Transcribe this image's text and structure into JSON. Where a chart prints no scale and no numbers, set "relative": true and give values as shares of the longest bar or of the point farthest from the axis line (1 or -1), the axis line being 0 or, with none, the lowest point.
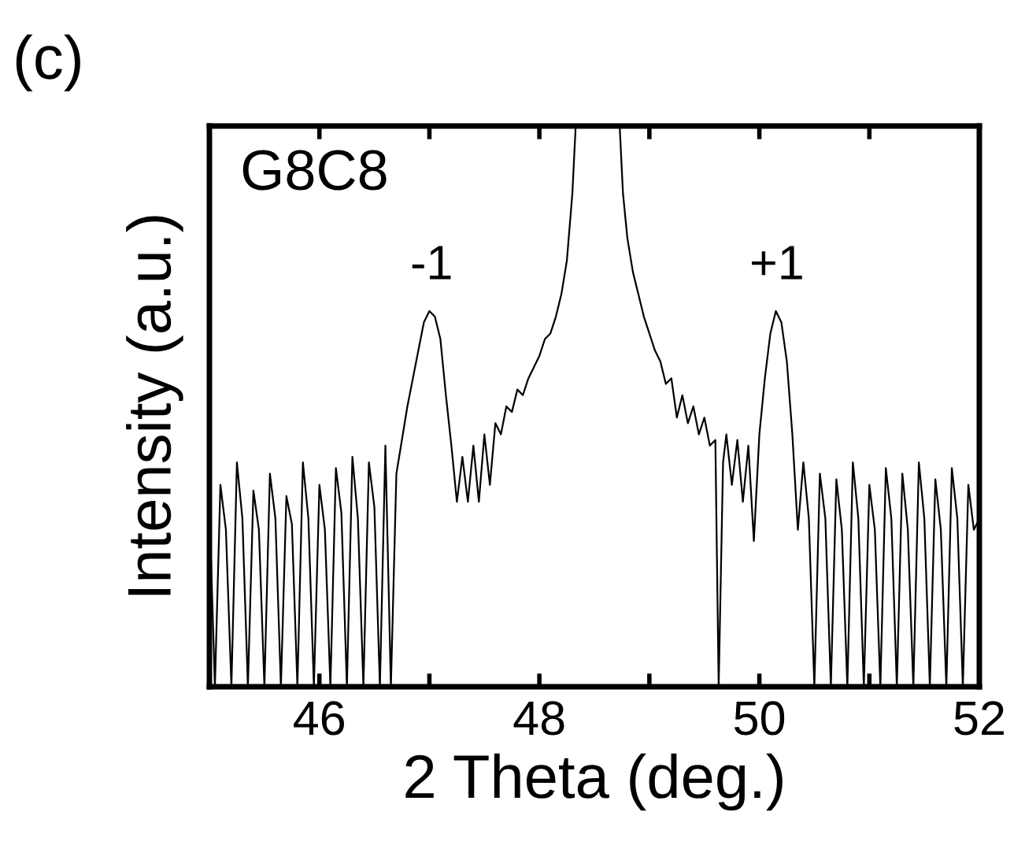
{
  "chart_data": {
    "type": "line",
    "relative": true,
    "xlabel": "2 Theta (deg.)",
    "ylabel": "Intensity (a.u.)",
    "xlim": [
      45,
      52
    ],
    "xticks": [
      46,
      {
        "value": 47,
        "label": null
      },
      48,
      {
        "value": 49,
        "label": null
      },
      50,
      {
        "value": 51,
        "label": null
      },
      52
    ],
    "annotations": [
      "(c)",
      "G8C8",
      {
        "text": "-1",
        "x": 47.02,
        "y": 0.67
      },
      {
        "text": "+1",
        "x": 50.16,
        "y": 0.67
      }
    ],
    "series": [
      {
        "color": "#000000",
        "x": [
          45.0,
          45.05,
          45.1,
          45.15,
          45.2,
          45.25,
          45.3,
          45.35,
          45.4,
          45.45,
          45.5,
          45.55,
          45.6,
          45.65,
          45.7,
          45.75,
          45.8,
          45.85,
          45.9,
          45.95,
          46.0,
          46.05,
          46.1,
          46.15,
          46.2,
          46.25,
          46.3,
          46.35,
          46.4,
          46.45,
          46.5,
          46.55,
          46.6,
          46.65,
          46.7,
          46.75,
          46.8,
          46.85,
          46.9,
          46.95,
          47.0,
          47.05,
          47.1,
          47.15,
          47.2,
          47.25,
          47.3,
          47.35,
          47.4,
          47.45,
          47.5,
          47.55,
          47.6,
          47.65,
          47.7,
          47.75,
          47.8,
          47.85,
          47.9,
          47.95,
          48.0,
          48.05,
          48.1,
          48.15,
          48.2,
          48.25,
          48.3,
          48.33,
          48.73,
          48.76,
          48.8,
          48.85,
          48.9,
          48.95,
          49.0,
          49.05,
          49.1,
          49.15,
          49.2,
          49.25,
          49.3,
          49.35,
          49.4,
          49.45,
          49.5,
          49.55,
          49.6,
          49.63,
          49.67,
          49.7,
          49.75,
          49.8,
          49.85,
          49.9,
          49.95,
          50.0,
          50.05,
          50.1,
          50.15,
          50.2,
          50.25,
          50.3,
          50.35,
          50.4,
          50.45,
          50.5,
          50.55,
          50.6,
          50.65,
          50.7,
          50.75,
          50.8,
          50.85,
          50.9,
          50.95,
          51.0,
          51.05,
          51.1,
          51.15,
          51.2,
          51.25,
          51.3,
          51.35,
          51.4,
          51.45,
          51.5,
          51.55,
          51.6,
          51.65,
          51.7,
          51.75,
          51.8,
          51.85,
          51.9,
          51.95,
          52.0
        ],
        "values": [
          0.32,
          0.0,
          0.36,
          0.28,
          0.0,
          0.4,
          0.3,
          0.0,
          0.35,
          0.28,
          0.0,
          0.38,
          0.3,
          0.0,
          0.34,
          0.29,
          0.0,
          0.4,
          0.3,
          0.0,
          0.36,
          0.28,
          0.0,
          0.39,
          0.31,
          0.0,
          0.41,
          0.3,
          0.0,
          0.4,
          0.32,
          0.0,
          0.43,
          0.0,
          0.38,
          0.44,
          0.5,
          0.55,
          0.6,
          0.65,
          0.67,
          0.66,
          0.62,
          0.52,
          0.43,
          0.33,
          0.41,
          0.33,
          0.43,
          0.33,
          0.45,
          0.36,
          0.47,
          0.45,
          0.5,
          0.49,
          0.53,
          0.52,
          0.55,
          0.57,
          0.59,
          0.62,
          0.63,
          0.66,
          0.7,
          0.76,
          0.88,
          1.0,
          1.0,
          0.88,
          0.8,
          0.74,
          0.7,
          0.66,
          0.63,
          0.6,
          0.58,
          0.54,
          0.55,
          0.48,
          0.52,
          0.47,
          0.5,
          0.45,
          0.48,
          0.43,
          0.44,
          0.0,
          0.4,
          0.45,
          0.36,
          0.44,
          0.33,
          0.43,
          0.26,
          0.45,
          0.55,
          0.63,
          0.67,
          0.65,
          0.58,
          0.45,
          0.28,
          0.4,
          0.3,
          0.0,
          0.38,
          0.3,
          0.0,
          0.37,
          0.28,
          0.0,
          0.4,
          0.3,
          0.0,
          0.36,
          0.28,
          0.0,
          0.39,
          0.3,
          0.0,
          0.38,
          0.28,
          0.0,
          0.4,
          0.3,
          0.0,
          0.37,
          0.28,
          0.0,
          0.39,
          0.3,
          0.0,
          0.36,
          0.28,
          0.3
        ]
      }
    ]
  }
}
